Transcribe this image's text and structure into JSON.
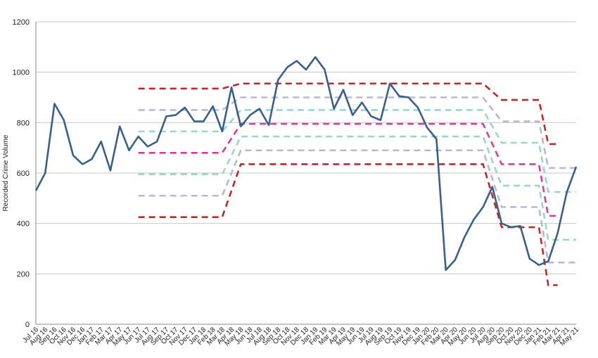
{
  "chart_data": {
    "type": "line",
    "title": "",
    "xlabel": "",
    "ylabel": "Recorded Crime Volume",
    "ylim": [
      0,
      1200
    ],
    "yticks": [
      0,
      200,
      400,
      600,
      800,
      1000,
      1200
    ],
    "grid": "horizontal",
    "legend": "none",
    "categories": [
      "Jul 16",
      "Aug 16",
      "Sep 16",
      "Oct 16",
      "Nov 16",
      "Dec 16",
      "Jan 17",
      "Feb 17",
      "Mar 17",
      "Apr 17",
      "May 17",
      "Jun 17",
      "Jul 17",
      "Aug 17",
      "Sep 17",
      "Oct 17",
      "Nov 17",
      "Dec 17",
      "Jan 18",
      "Feb 18",
      "Mar 18",
      "Apr 18",
      "May 18",
      "Jun 18",
      "Jul 18",
      "Aug 18",
      "Sep 18",
      "Oct 18",
      "Nov 18",
      "Dec 18",
      "Jan 19",
      "Feb 19",
      "Mar 19",
      "Apr 19",
      "May 19",
      "Jun 19",
      "Jul 19",
      "Aug 19",
      "Sep 19",
      "Oct 19",
      "Nov 19",
      "Dec 19",
      "Jan 20",
      "Feb 20",
      "Mar 20",
      "Apr 20",
      "May 20",
      "Jun 20",
      "Jul 20",
      "Aug 20",
      "Sep 20",
      "Oct 20",
      "Nov 20",
      "Dec 20",
      "Jan 21",
      "Feb 21",
      "Mar 21",
      "Apr 21",
      "May 21"
    ],
    "series": [
      {
        "color": "#3b5f8c",
        "style": "solid",
        "values": [
          530,
          600,
          875,
          810,
          670,
          635,
          655,
          725,
          610,
          785,
          690,
          745,
          705,
          725,
          825,
          830,
          860,
          805,
          805,
          865,
          765,
          940,
          785,
          830,
          855,
          790,
          970,
          1020,
          1045,
          1010,
          1060,
          1010,
          855,
          930,
          830,
          880,
          825,
          810,
          955,
          905,
          900,
          860,
          780,
          735,
          215,
          255,
          345,
          415,
          465,
          545,
          400,
          385,
          390,
          260,
          235,
          250,
          360,
          525,
          625
        ]
      }
    ],
    "control_lines": [
      {
        "color": "#c0282b",
        "style": "dashed",
        "segments": [
          [
            11,
            20,
            425
          ],
          [
            22,
            48,
            635
          ],
          [
            50,
            54,
            385
          ],
          [
            55,
            56,
            155
          ]
        ]
      },
      {
        "color": "#c0282b",
        "style": "dashed",
        "segments": [
          [
            11,
            20,
            935
          ],
          [
            22,
            48,
            955
          ],
          [
            50,
            54,
            890
          ],
          [
            55,
            56,
            715
          ]
        ]
      },
      {
        "color": "#d63c9b",
        "style": "dashed",
        "segments": [
          [
            11,
            20,
            680
          ],
          [
            22,
            48,
            795
          ],
          [
            50,
            54,
            635
          ],
          [
            55,
            56,
            430
          ]
        ]
      },
      {
        "color": "#9ad7c4",
        "style": "dashed",
        "segments": [
          [
            11,
            20,
            765
          ],
          [
            22,
            48,
            850
          ],
          [
            50,
            54,
            720
          ],
          [
            55,
            58,
            525
          ]
        ]
      },
      {
        "color": "#9ad7c4",
        "style": "dashed",
        "segments": [
          [
            11,
            20,
            595
          ],
          [
            22,
            48,
            745
          ],
          [
            50,
            54,
            550
          ],
          [
            55,
            58,
            335
          ]
        ]
      },
      {
        "color": "#b8b8d6",
        "style": "dashed",
        "segments": [
          [
            11,
            20,
            850
          ],
          [
            22,
            48,
            900
          ],
          [
            50,
            54,
            805
          ],
          [
            55,
            58,
            620
          ]
        ]
      },
      {
        "color": "#b8b8d6",
        "style": "dashed",
        "segments": [
          [
            11,
            20,
            510
          ],
          [
            22,
            48,
            690
          ],
          [
            50,
            54,
            465
          ],
          [
            55,
            58,
            245
          ]
        ]
      }
    ]
  }
}
